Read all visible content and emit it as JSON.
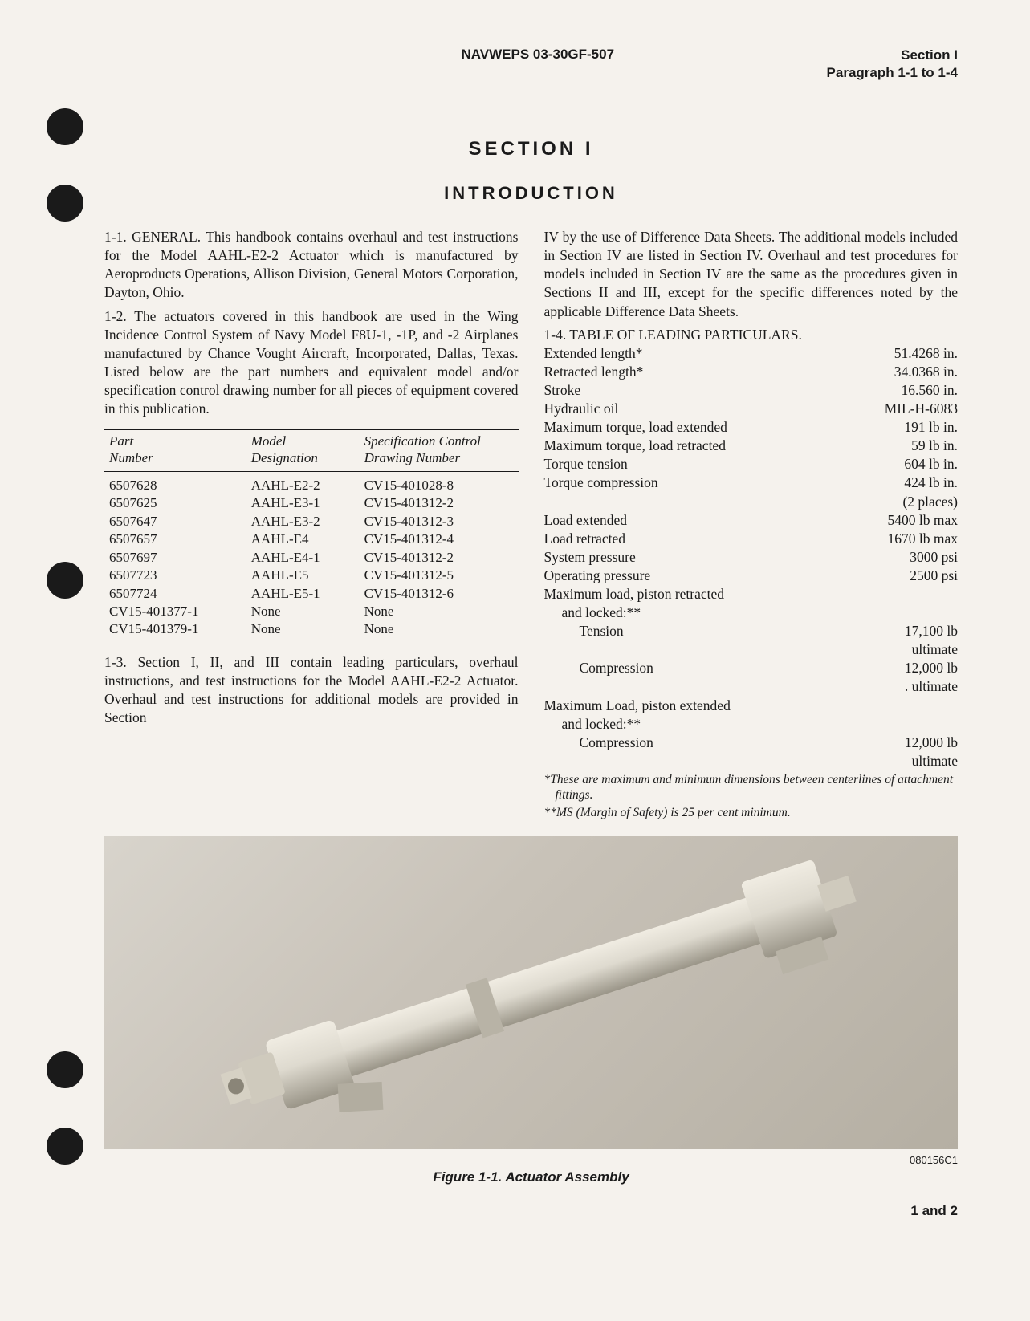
{
  "header": {
    "doc_id": "NAVWEPS 03-30GF-507",
    "section_line1": "Section I",
    "section_line2": "Paragraph 1-1 to 1-4"
  },
  "titles": {
    "section": "SECTION I",
    "introduction": "INTRODUCTION"
  },
  "paragraphs": {
    "p1_1": "1-1. GENERAL. This handbook contains overhaul and test instructions for the Model AAHL-E2-2 Actuator which is manufactured by Aeroproducts Operations, Allison Division, General Motors Corporation, Dayton, Ohio.",
    "p1_2": "1-2. The actuators covered in this handbook are used in the Wing Incidence Control System of Navy Model F8U-1, -1P, and -2 Airplanes manufactured by Chance Vought Aircraft, Incorporated, Dallas, Texas. Listed below are the part numbers and equivalent model and/or specification control drawing number for all pieces of equipment covered in this publication.",
    "p1_3": "1-3. Section I, II, and III contain leading particulars, overhaul instructions, and test instructions for the Model AAHL-E2-2 Actuator. Overhaul and test instructions for additional models are provided in Section",
    "p1_3b": "IV by the use of Difference Data Sheets. The additional models included in Section IV are listed in Section IV. Overhaul and test procedures for models included in Section IV are the same as the procedures given in Sections II and III, except for the specific differences noted by the applicable Difference Data Sheets.",
    "p1_4_title": "1-4. TABLE OF LEADING PARTICULARS."
  },
  "parts_table": {
    "headers": {
      "col1_l1": "Part",
      "col1_l2": "Number",
      "col2_l1": "Model",
      "col2_l2": "Designation",
      "col3_l1": "Specification Control",
      "col3_l2": "Drawing Number"
    },
    "rows": [
      {
        "pn": "6507628",
        "model": "AAHL-E2-2",
        "spec": "CV15-401028-8"
      },
      {
        "pn": "6507625",
        "model": "AAHL-E3-1",
        "spec": "CV15-401312-2"
      },
      {
        "pn": "6507647",
        "model": "AAHL-E3-2",
        "spec": "CV15-401312-3"
      },
      {
        "pn": "6507657",
        "model": "AAHL-E4",
        "spec": "CV15-401312-4"
      },
      {
        "pn": "6507697",
        "model": "AAHL-E4-1",
        "spec": "CV15-401312-2"
      },
      {
        "pn": "6507723",
        "model": "AAHL-E5",
        "spec": "CV15-401312-5"
      },
      {
        "pn": "6507724",
        "model": "AAHL-E5-1",
        "spec": "CV15-401312-6"
      },
      {
        "pn": "CV15-401377-1",
        "model": "None",
        "spec": "None"
      },
      {
        "pn": "CV15-401379-1",
        "model": "None",
        "spec": "None"
      }
    ]
  },
  "particulars": [
    {
      "label": "Extended length*",
      "value": "51.4268 in.",
      "indent": 0
    },
    {
      "label": "Retracted length*",
      "value": "34.0368 in.",
      "indent": 0
    },
    {
      "label": "Stroke",
      "value": "16.560 in.",
      "indent": 0
    },
    {
      "label": "Hydraulic oil",
      "value": "MIL-H-6083",
      "indent": 0
    },
    {
      "label": "Maximum torque, load extended",
      "value": "191 lb in.",
      "indent": 0
    },
    {
      "label": "Maximum torque, load retracted",
      "value": "59 lb in.",
      "indent": 0
    },
    {
      "label": "Torque tension",
      "value": "604 lb in.",
      "indent": 0
    },
    {
      "label": "Torque compression",
      "value": "424 lb in.",
      "indent": 0
    },
    {
      "label": "",
      "value": "(2 places)",
      "indent": 0
    },
    {
      "label": "Load extended",
      "value": "5400 lb max",
      "indent": 0
    },
    {
      "label": "Load retracted",
      "value": "1670 lb max",
      "indent": 0
    },
    {
      "label": "System pressure",
      "value": "3000 psi",
      "indent": 0
    },
    {
      "label": "Operating pressure",
      "value": "2500 psi",
      "indent": 0
    },
    {
      "label": "Maximum load, piston retracted",
      "value": "",
      "indent": 0
    },
    {
      "label": "and locked:**",
      "value": "",
      "indent": 1
    },
    {
      "label": "Tension",
      "value": "17,100 lb",
      "indent": 2
    },
    {
      "label": "",
      "value": "ultimate",
      "indent": 0
    },
    {
      "label": "Compression",
      "value": "12,000 lb",
      "indent": 2
    },
    {
      "label": "",
      "value": ". ultimate",
      "indent": 0
    },
    {
      "label": "Maximum Load, piston extended",
      "value": "",
      "indent": 0
    },
    {
      "label": "and locked:**",
      "value": "",
      "indent": 1
    },
    {
      "label": "Compression",
      "value": "12,000 lb",
      "indent": 2
    },
    {
      "label": "",
      "value": "ultimate",
      "indent": 0
    }
  ],
  "footnotes": {
    "f1": "*These are maximum and minimum dimensions between centerlines of attachment fittings.",
    "f2": "**MS (Margin of Safety) is 25 per cent minimum."
  },
  "figure": {
    "code": "080156C1",
    "caption": "Figure 1-1. Actuator Assembly"
  },
  "page_number": "1 and 2",
  "punch_holes": [
    135,
    230,
    700,
    1310,
    1405
  ],
  "colors": {
    "page_bg": "#f5f2ed",
    "text": "#1a1a1a",
    "hole": "#1a1a1a",
    "figure_bg": "#c8c2b8",
    "actuator_body": "#dedacf",
    "actuator_shadow": "#8a8578"
  }
}
